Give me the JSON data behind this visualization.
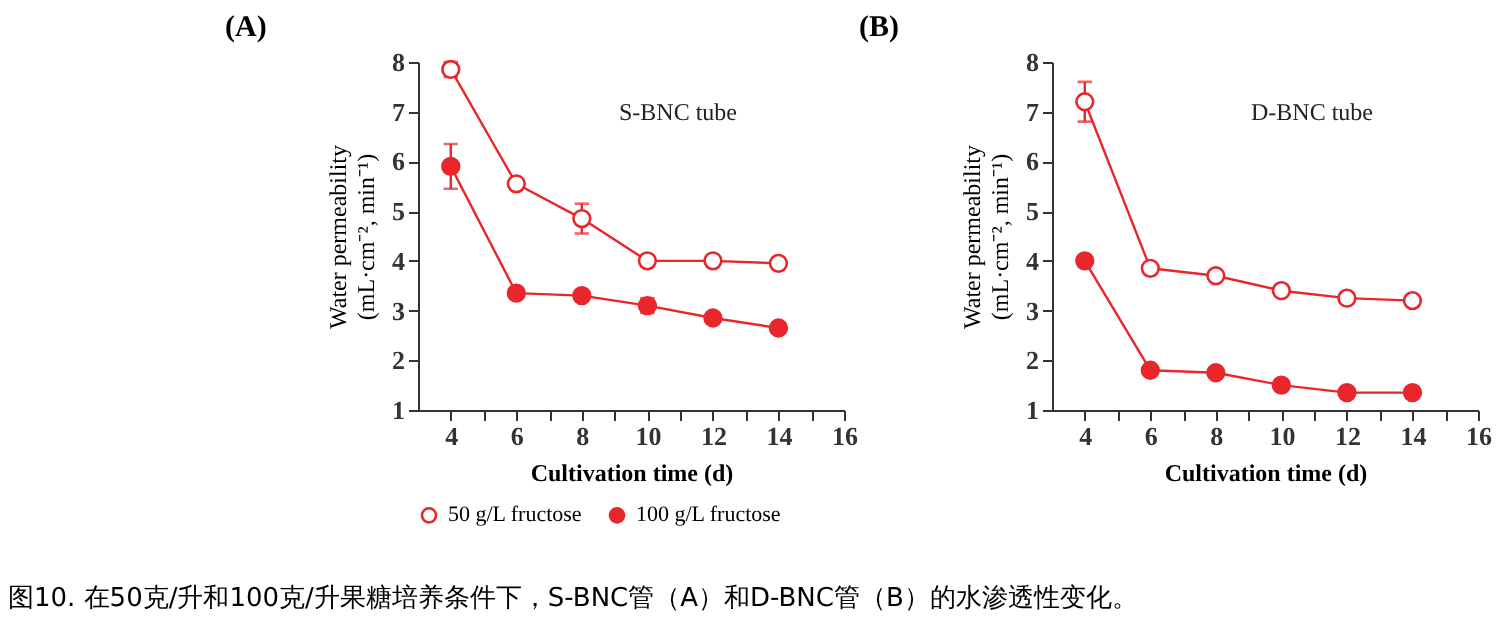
{
  "chart_data": [
    {
      "type": "line",
      "title": "(A)",
      "xlabel": "Cultivation time (d)",
      "ylabel": "Water permeability (mL·cm⁻², min⁻¹)",
      "annotations": [
        "S-BNC tube"
      ],
      "x": [
        4,
        6,
        8,
        10,
        12,
        14
      ],
      "series": [
        {
          "name": "50 g/L fructose",
          "color": "#e8262b",
          "values": [
            7.85,
            5.55,
            4.85,
            4.0,
            4.0,
            3.95
          ],
          "errors": [
            0.15,
            null,
            0.3,
            null,
            null,
            null
          ]
        },
        {
          "name": "100 g/L fructose",
          "color": "#e8262b",
          "values": [
            5.9,
            3.35,
            3.3,
            3.1,
            2.85,
            2.65
          ],
          "errors": [
            0.45,
            null,
            null,
            0.15,
            null,
            null
          ]
        }
      ],
      "xlim": [
        3,
        16
      ],
      "xticks": [
        4,
        {
          "value": 5,
          "label": null
        },
        6,
        {
          "value": 7,
          "label": null
        },
        8,
        {
          "value": 9,
          "label": null
        },
        10,
        {
          "value": 11,
          "label": null
        },
        12,
        {
          "value": 13,
          "label": null
        },
        14,
        {
          "value": 15,
          "label": null
        },
        16
      ],
      "ylim": [
        1,
        8
      ],
      "yticks": [
        1,
        2,
        3,
        4,
        5,
        6,
        7,
        8
      ],
      "marker": "circle",
      "grid": false,
      "legend": "bottom"
    },
    {
      "type": "line",
      "title": "(B)",
      "xlabel": "Cultivation time (d)",
      "ylabel": "Water permeability (mL·cm⁻², min⁻¹)",
      "annotations": [
        "D-BNC tube",
        "图10. 在50克/升和100克/升果糖培养条件下，S-BNC管（A）和D-BNC管（B）的水渗透性变化。"
      ],
      "x": [
        4,
        6,
        8,
        10,
        12,
        14
      ],
      "series": [
        {
          "name": "50 g/L fructose",
          "color": "#e8262b",
          "values": [
            7.2,
            3.85,
            3.7,
            3.4,
            3.25,
            3.2
          ],
          "errors": [
            0.4,
            null,
            null,
            null,
            null,
            null
          ]
        },
        {
          "name": "100 g/L fructose",
          "color": "#e8262b",
          "values": [
            4.0,
            1.8,
            1.75,
            1.5,
            1.35,
            1.35
          ]
        }
      ],
      "xlim": [
        3,
        16
      ],
      "xticks": [
        4,
        {
          "value": 5,
          "label": null
        },
        6,
        {
          "value": 7,
          "label": null
        },
        8,
        {
          "value": 9,
          "label": null
        },
        10,
        {
          "value": 11,
          "label": null
        },
        12,
        {
          "value": 13,
          "label": null
        },
        14,
        {
          "value": 15,
          "label": null
        },
        16
      ],
      "ylim": [
        1,
        8
      ],
      "yticks": [
        1,
        2,
        3,
        4,
        5,
        6,
        7,
        8
      ],
      "marker": "circle",
      "grid": false,
      "legend": "bottom"
    }
  ]
}
